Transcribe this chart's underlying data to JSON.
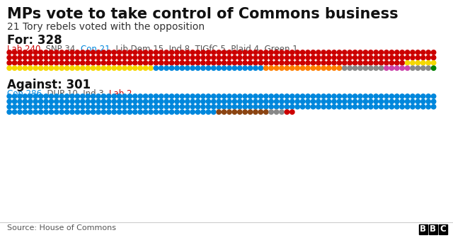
{
  "title": "MPs vote to take control of Commons business",
  "subtitle": "21 Tory rebels voted with the opposition",
  "for_label": "For: 328",
  "against_label": "Against: 301",
  "for_colors": {
    "Lab": "#cc0000",
    "SNP": "#f5d800",
    "Con": "#0087dc",
    "LibDem": "#ff7f00",
    "Ind": "#888888",
    "TIGfC": "#cc44aa",
    "Plaid": "#888888",
    "Green": "#008000"
  },
  "against_colors": {
    "Con": "#0087dc",
    "DUP": "#8b4513",
    "Ind": "#888888",
    "Lab": "#cc0000"
  },
  "for_counts": [
    240,
    34,
    21,
    15,
    8,
    5,
    4,
    1
  ],
  "against_counts": [
    286,
    10,
    3,
    2
  ],
  "for_keys": [
    "Lab",
    "SNP",
    "Con",
    "LibDem",
    "Ind",
    "TIGfC",
    "Plaid",
    "Green"
  ],
  "against_keys": [
    "Con",
    "DUP",
    "Ind",
    "Lab"
  ],
  "background_color": "#ffffff",
  "source_text": "Source: House of Commons",
  "cols": 82
}
